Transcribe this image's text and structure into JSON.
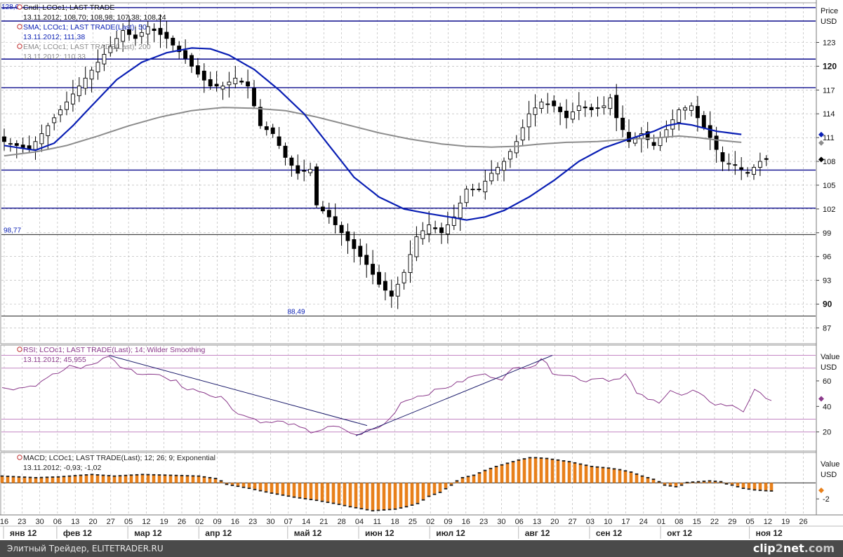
{
  "footer": {
    "text": "Элитный Трейдер, ELITETRADER.RU",
    "logo_a": "clip",
    "logo_b": "2",
    "logo_c": "net",
    "logo_d": ".com"
  },
  "colors": {
    "background": "#ffffff",
    "grid": "#b0b0b0",
    "candle": "#000000",
    "sma": "#0a1fb4",
    "ema": "#8c8c8c",
    "level": "#0a0a8c",
    "rsi": "#8b3a8b",
    "macd_hist": "#e8801a",
    "macd_hist_dark": "#1a1a1a",
    "trend": "#1a1a6a"
  },
  "chart_data": [
    {
      "type": "candlestick",
      "panel": "price",
      "legend": [
        {
          "label": "Cndl; LCOc1; LAST TRADE",
          "values": "13.11.2012; 108,70; 108,98; 107,38; 108,24"
        },
        {
          "label": "SMA; LCOc1; LAST TRADE(Last); 50",
          "values": "13.11.2012; 111,38"
        },
        {
          "label": "EMA; LCOc1; LAST TRADE(Last); 200",
          "values": "13.11.2012; 110,33"
        }
      ],
      "axis_title": "Price",
      "axis_unit": "USD",
      "ylim": [
        85,
        128
      ],
      "y_ticks": [
        87,
        90,
        93,
        96,
        99,
        102,
        105,
        108,
        111,
        114,
        117,
        120,
        123
      ],
      "y_ticks_bold": [
        90,
        120
      ],
      "top_value_label": "128,6",
      "horizontal_levels": [
        127.4,
        125.7,
        120.9,
        117.3,
        106.9,
        102.1
      ],
      "marked_levels": [
        {
          "value": 98.77,
          "label": "98,77",
          "anchor": "left"
        },
        {
          "value": 88.49,
          "label": "88,49",
          "anchor": "middle"
        }
      ],
      "right_markers": [
        {
          "value": 111.38,
          "color": "#0a1fb4"
        },
        {
          "value": 110.33,
          "color": "#8c8c8c"
        },
        {
          "value": 108.24,
          "color": "#000000"
        }
      ],
      "close_anchors": [
        [
          0,
          110.5
        ],
        [
          4,
          109.5
        ],
        [
          7,
          112.5
        ],
        [
          10,
          115.5
        ],
        [
          13,
          118.5
        ],
        [
          16,
          121.5
        ],
        [
          19,
          124.5
        ],
        [
          21,
          123.5
        ],
        [
          23,
          125.0
        ],
        [
          26,
          123.5
        ],
        [
          29,
          121.0
        ],
        [
          31,
          119.0
        ],
        [
          33,
          117.5
        ],
        [
          35,
          117.5
        ],
        [
          37,
          118.5
        ],
        [
          39,
          117.5
        ],
        [
          41,
          112.5
        ],
        [
          43,
          111.5
        ],
        [
          45,
          108.5
        ],
        [
          47,
          106.5
        ],
        [
          49,
          107.0
        ],
        [
          50,
          102.5
        ],
        [
          52,
          101.0
        ],
        [
          54,
          99.0
        ],
        [
          56,
          97.0
        ],
        [
          58,
          95.0
        ],
        [
          60,
          92.5
        ],
        [
          62,
          91.0
        ],
        [
          64,
          94.0
        ],
        [
          66,
          98.5
        ],
        [
          68,
          100.0
        ],
        [
          70,
          99.0
        ],
        [
          72,
          101.0
        ],
        [
          74,
          104.5
        ],
        [
          76,
          104.5
        ],
        [
          78,
          106.5
        ],
        [
          80,
          108.0
        ],
        [
          82,
          110.5
        ],
        [
          84,
          114.0
        ],
        [
          86,
          115.5
        ],
        [
          88,
          115.0
        ],
        [
          90,
          113.5
        ],
        [
          92,
          115.0
        ],
        [
          94,
          114.5
        ],
        [
          96,
          115.0
        ],
        [
          97,
          116.0
        ],
        [
          98,
          113.5
        ],
        [
          100,
          110.5
        ],
        [
          102,
          111.5
        ],
        [
          104,
          110.0
        ],
        [
          106,
          112.0
        ],
        [
          108,
          114.5
        ],
        [
          110,
          115.0
        ],
        [
          111,
          113.5
        ],
        [
          113,
          111.0
        ],
        [
          115,
          108.0
        ],
        [
          117,
          107.5
        ],
        [
          119,
          106.5
        ],
        [
          121,
          108.0
        ],
        [
          122,
          108.24
        ]
      ],
      "sma_50": [
        [
          0,
          110.0
        ],
        [
          5,
          109.4
        ],
        [
          8,
          110.3
        ],
        [
          11,
          112.5
        ],
        [
          14,
          115.0
        ],
        [
          18,
          118.3
        ],
        [
          22,
          120.5
        ],
        [
          26,
          121.7
        ],
        [
          30,
          122.3
        ],
        [
          33,
          122.2
        ],
        [
          36,
          121.4
        ],
        [
          40,
          119.6
        ],
        [
          44,
          117.0
        ],
        [
          48,
          114.0
        ],
        [
          52,
          110.0
        ],
        [
          56,
          106.0
        ],
        [
          60,
          103.5
        ],
        [
          64,
          102.0
        ],
        [
          68,
          101.4
        ],
        [
          72,
          100.9
        ],
        [
          74,
          100.6
        ],
        [
          77,
          101.0
        ],
        [
          80,
          101.8
        ],
        [
          84,
          103.5
        ],
        [
          88,
          105.6
        ],
        [
          92,
          108.0
        ],
        [
          96,
          109.7
        ],
        [
          100,
          110.8
        ],
        [
          104,
          111.8
        ],
        [
          106,
          112.5
        ],
        [
          108,
          112.8
        ],
        [
          110,
          112.6
        ],
        [
          114,
          111.8
        ],
        [
          118,
          111.4
        ]
      ],
      "ema_200": [
        [
          0,
          108.7
        ],
        [
          5,
          109.2
        ],
        [
          10,
          110.0
        ],
        [
          15,
          111.2
        ],
        [
          20,
          112.5
        ],
        [
          25,
          113.6
        ],
        [
          30,
          114.4
        ],
        [
          35,
          114.8
        ],
        [
          40,
          114.7
        ],
        [
          45,
          114.4
        ],
        [
          50,
          113.6
        ],
        [
          55,
          112.6
        ],
        [
          60,
          111.6
        ],
        [
          65,
          110.8
        ],
        [
          70,
          110.2
        ],
        [
          74,
          109.9
        ],
        [
          78,
          109.8
        ],
        [
          82,
          109.9
        ],
        [
          86,
          110.2
        ],
        [
          90,
          110.4
        ],
        [
          95,
          110.5
        ],
        [
          100,
          110.8
        ],
        [
          105,
          111.0
        ],
        [
          108,
          111.2
        ],
        [
          111,
          111.0
        ],
        [
          114,
          110.7
        ],
        [
          118,
          110.4
        ]
      ]
    },
    {
      "type": "line",
      "panel": "rsi",
      "legend": [
        {
          "label": "RSI; LCOc1; LAST TRADE(Last); 14; Wilder Smoothing",
          "values": "13.11.2012; 45,955"
        }
      ],
      "axis_title": "Value",
      "axis_unit": "USD",
      "ylim": [
        5,
        88
      ],
      "y_ticks": [
        20,
        40,
        60
      ],
      "bands": [
        80,
        70,
        30,
        20
      ],
      "marker": {
        "value": 45.955,
        "color": "#8b3a8b"
      },
      "anchors": [
        [
          0,
          56
        ],
        [
          2,
          54
        ],
        [
          4,
          56
        ],
        [
          6,
          57
        ],
        [
          8,
          63
        ],
        [
          10,
          66
        ],
        [
          12,
          71
        ],
        [
          14,
          70
        ],
        [
          16,
          73
        ],
        [
          18,
          77
        ],
        [
          19,
          80
        ],
        [
          21,
          71
        ],
        [
          23,
          68
        ],
        [
          25,
          65
        ],
        [
          27,
          66
        ],
        [
          29,
          62
        ],
        [
          31,
          60
        ],
        [
          33,
          53
        ],
        [
          35,
          53
        ],
        [
          37,
          49
        ],
        [
          39,
          48
        ],
        [
          41,
          38
        ],
        [
          43,
          33
        ],
        [
          45,
          30
        ],
        [
          47,
          27
        ],
        [
          49,
          28
        ],
        [
          51,
          27
        ],
        [
          53,
          23
        ],
        [
          55,
          20
        ],
        [
          57,
          22
        ],
        [
          59,
          24
        ],
        [
          61,
          22
        ],
        [
          63,
          17
        ],
        [
          65,
          21
        ],
        [
          67,
          23
        ],
        [
          69,
          30
        ],
        [
          71,
          43
        ],
        [
          73,
          47
        ],
        [
          75,
          49
        ],
        [
          77,
          52
        ],
        [
          79,
          55
        ],
        [
          81,
          58
        ],
        [
          83,
          62
        ],
        [
          85,
          65
        ],
        [
          87,
          64
        ],
        [
          89,
          62
        ],
        [
          91,
          69
        ],
        [
          93,
          71
        ],
        [
          95,
          73
        ],
        [
          96,
          78
        ],
        [
          98,
          67
        ],
        [
          100,
          65
        ],
        [
          102,
          63
        ],
        [
          104,
          60
        ],
        [
          106,
          63
        ],
        [
          108,
          61
        ],
        [
          110,
          61
        ],
        [
          111,
          65
        ],
        [
          113,
          51
        ],
        [
          115,
          45
        ],
        [
          117,
          44
        ],
        [
          119,
          53
        ],
        [
          121,
          48
        ],
        [
          123,
          52
        ],
        [
          125,
          47
        ],
        [
          127,
          42
        ],
        [
          129,
          41
        ],
        [
          131,
          39
        ],
        [
          132,
          36
        ],
        [
          134,
          54
        ],
        [
          136,
          45
        ],
        [
          137,
          46
        ]
      ],
      "trendlines": [
        {
          "from": [
            19,
            80
          ],
          "to": [
            65,
            25
          ]
        },
        {
          "from": [
            63,
            17
          ],
          "to": [
            98,
            80
          ]
        }
      ]
    },
    {
      "type": "bar",
      "panel": "macd",
      "legend": [
        {
          "label": "MACD; LCOc1; LAST TRADE(Last); 12; 26; 9; Exponential",
          "values": "13.11.2012; -0,93; -1,02"
        }
      ],
      "axis_title": "Value",
      "axis_unit": "USD",
      "ylim": [
        -4.0,
        3.8
      ],
      "y_ticks": [
        -2
      ],
      "zero_line": 0,
      "marker": {
        "value": -0.93,
        "color": "#e8801a"
      },
      "anchors": [
        [
          0,
          0.8
        ],
        [
          6,
          0.6
        ],
        [
          10,
          0.7
        ],
        [
          16,
          1.0
        ],
        [
          20,
          0.8
        ],
        [
          25,
          1.0
        ],
        [
          30,
          0.9
        ],
        [
          35,
          0.8
        ],
        [
          38,
          0.5
        ],
        [
          40,
          -0.1
        ],
        [
          44,
          -0.6
        ],
        [
          48,
          -1.2
        ],
        [
          52,
          -1.7
        ],
        [
          56,
          -2.1
        ],
        [
          60,
          -2.6
        ],
        [
          62,
          -2.9
        ],
        [
          66,
          -3.4
        ],
        [
          70,
          -3.2
        ],
        [
          72,
          -2.9
        ],
        [
          74,
          -2.5
        ],
        [
          76,
          -1.6
        ],
        [
          78,
          -1.1
        ],
        [
          80,
          -0.2
        ],
        [
          82,
          0.6
        ],
        [
          84,
          0.9
        ],
        [
          86,
          1.5
        ],
        [
          88,
          2.0
        ],
        [
          90,
          2.4
        ],
        [
          92,
          2.8
        ],
        [
          94,
          3.1
        ],
        [
          95,
          3.1
        ],
        [
          97,
          3.0
        ],
        [
          99,
          2.8
        ],
        [
          101,
          2.6
        ],
        [
          103,
          2.3
        ],
        [
          105,
          2.0
        ],
        [
          108,
          1.8
        ],
        [
          110,
          1.6
        ],
        [
          112,
          1.3
        ],
        [
          114,
          0.8
        ],
        [
          116,
          0.4
        ],
        [
          118,
          -0.2
        ],
        [
          120,
          -0.4
        ],
        [
          122,
          0.0
        ],
        [
          124,
          0.1
        ],
        [
          126,
          0.2
        ],
        [
          128,
          0.1
        ],
        [
          130,
          -0.2
        ],
        [
          132,
          -0.6
        ],
        [
          134,
          -0.8
        ],
        [
          136,
          -0.9
        ],
        [
          137,
          -0.93
        ]
      ]
    }
  ],
  "time_axis": {
    "day_ticks": [
      "16",
      "23",
      "30",
      "06",
      "13",
      "20",
      "27",
      "05",
      "12",
      "19",
      "26",
      "02",
      "09",
      "16",
      "23",
      "30",
      "07",
      "14",
      "21",
      "28",
      "04",
      "11",
      "18",
      "25",
      "02",
      "09",
      "16",
      "23",
      "30",
      "06",
      "13",
      "20",
      "27",
      "03",
      "10",
      "17",
      "24",
      "01",
      "08",
      "15",
      "22",
      "29",
      "05",
      "12",
      "19",
      "26"
    ],
    "months": [
      "янв 12",
      "фев 12",
      "мар 12",
      "апр 12",
      "май 12",
      "июн 12",
      "июл 12",
      "авг 12",
      "сен 12",
      "окт 12",
      "ноя 12"
    ],
    "month_start_tick": [
      0,
      3,
      7,
      11,
      16,
      20,
      24,
      29,
      33,
      37,
      42
    ]
  }
}
